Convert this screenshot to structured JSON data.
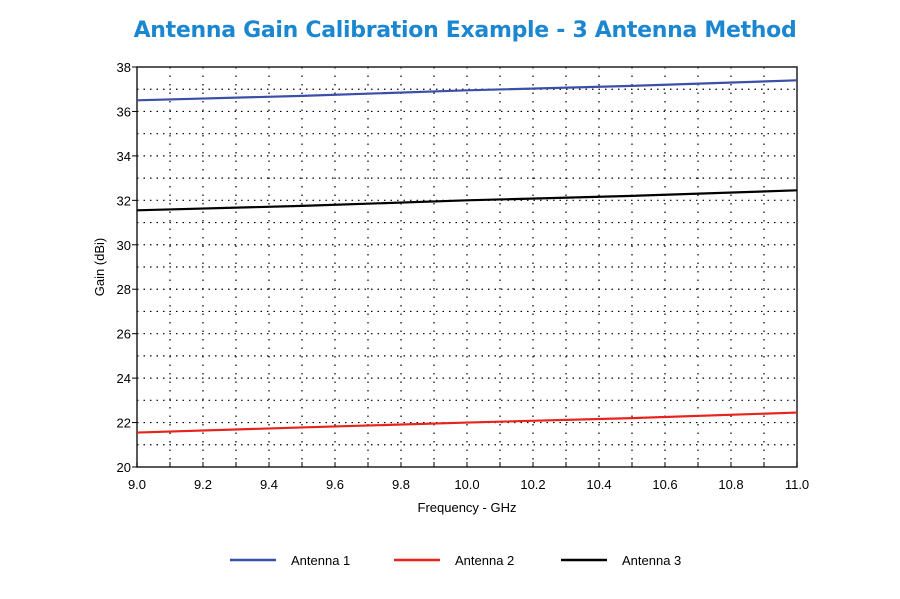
{
  "chart_data": {
    "type": "line",
    "title": "Antenna Gain Calibration Example - 3 Antenna Method",
    "xlabel": "Frequency - GHz",
    "ylabel": "Gain (dBi)",
    "xlim": [
      9.0,
      11.0
    ],
    "ylim": [
      20,
      38
    ],
    "xticks": [
      "9.0",
      "9.2",
      "9.4",
      "9.6",
      "9.8",
      "10.0",
      "10.2",
      "10.4",
      "10.6",
      "10.8",
      "11.0"
    ],
    "yticks": [
      "20",
      "22",
      "24",
      "26",
      "28",
      "30",
      "32",
      "34",
      "36",
      "38"
    ],
    "grid": "dotted, major and minor",
    "legend_position": "bottom",
    "x": [
      9.0,
      9.5,
      10.0,
      10.5,
      11.0
    ],
    "series": [
      {
        "name": "Antenna 1",
        "color": "#3a4fa8",
        "values": [
          36.5,
          36.7,
          36.95,
          37.15,
          37.4
        ]
      },
      {
        "name": "Antenna 2",
        "color": "#e8231c",
        "values": [
          21.55,
          21.78,
          22.0,
          22.2,
          22.45
        ]
      },
      {
        "name": "Antenna 3",
        "color": "#000000",
        "values": [
          31.55,
          31.75,
          32.0,
          32.2,
          32.45
        ]
      }
    ]
  }
}
